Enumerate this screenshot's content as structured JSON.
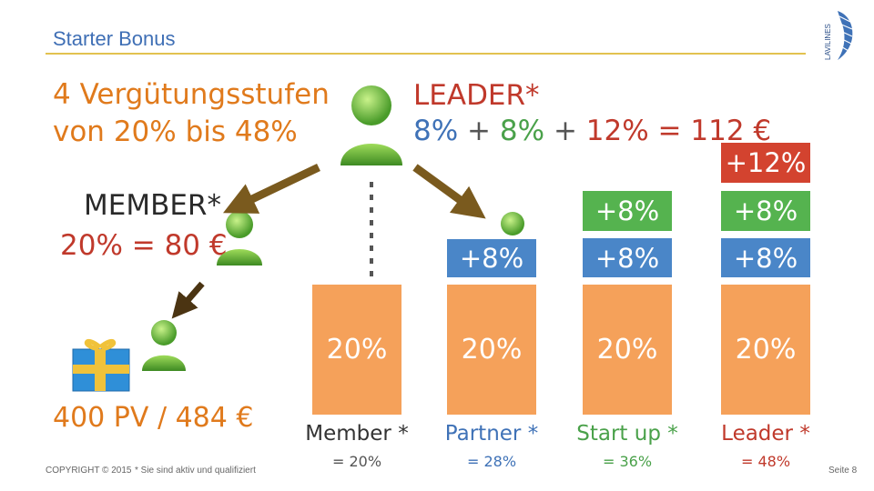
{
  "slide": {
    "title": "Starter Bonus",
    "headline_line1": "4 Vergütungsstufen",
    "headline_line2": "von 20% bis 48%"
  },
  "leader": {
    "title": "LEADER*",
    "formula_parts": [
      "8%",
      "+",
      "8%",
      "+",
      "12%",
      "=",
      "112 €"
    ]
  },
  "member": {
    "title": "MEMBER*",
    "value": "20% = 80 €"
  },
  "entry": {
    "text": "400 PV / 484 €"
  },
  "columns": [
    {
      "base_label": "20%",
      "extras": [],
      "name": "Member *",
      "total": "= 20%",
      "name_color": "#333333",
      "total_color": "#555555"
    },
    {
      "base_label": "20%",
      "extras": [
        "+8%"
      ],
      "name": "Partner *",
      "total": "= 28%",
      "name_color": "#3f72b7",
      "total_color": "#3f72b7"
    },
    {
      "base_label": "20%",
      "extras": [
        "+8%",
        "+8%"
      ],
      "name": "Start up *",
      "total": "= 36%",
      "name_color": "#4aa14a",
      "total_color": "#4aa14a"
    },
    {
      "base_label": "20%",
      "extras": [
        "+8%",
        "+8%",
        "+12%"
      ],
      "name": "Leader *",
      "total": "= 48%",
      "name_color": "#c0392b",
      "total_color": "#c0392b"
    }
  ],
  "footer": {
    "copyright": "COPYRIGHT © 2015",
    "note": "* Sie sind aktiv und qualifiziert",
    "page": "Seite 8"
  },
  "logo": {
    "text": "LAVILINES"
  },
  "colors": {
    "base": "#f5a15a",
    "blue": "#4a86c8",
    "green": "#55b34f",
    "red": "#d3432f",
    "accent_orange": "#e07a1c"
  },
  "icons": [
    "user-avatar-icon",
    "gift-box-icon",
    "arrow-icon",
    "dotted-line-icon"
  ]
}
